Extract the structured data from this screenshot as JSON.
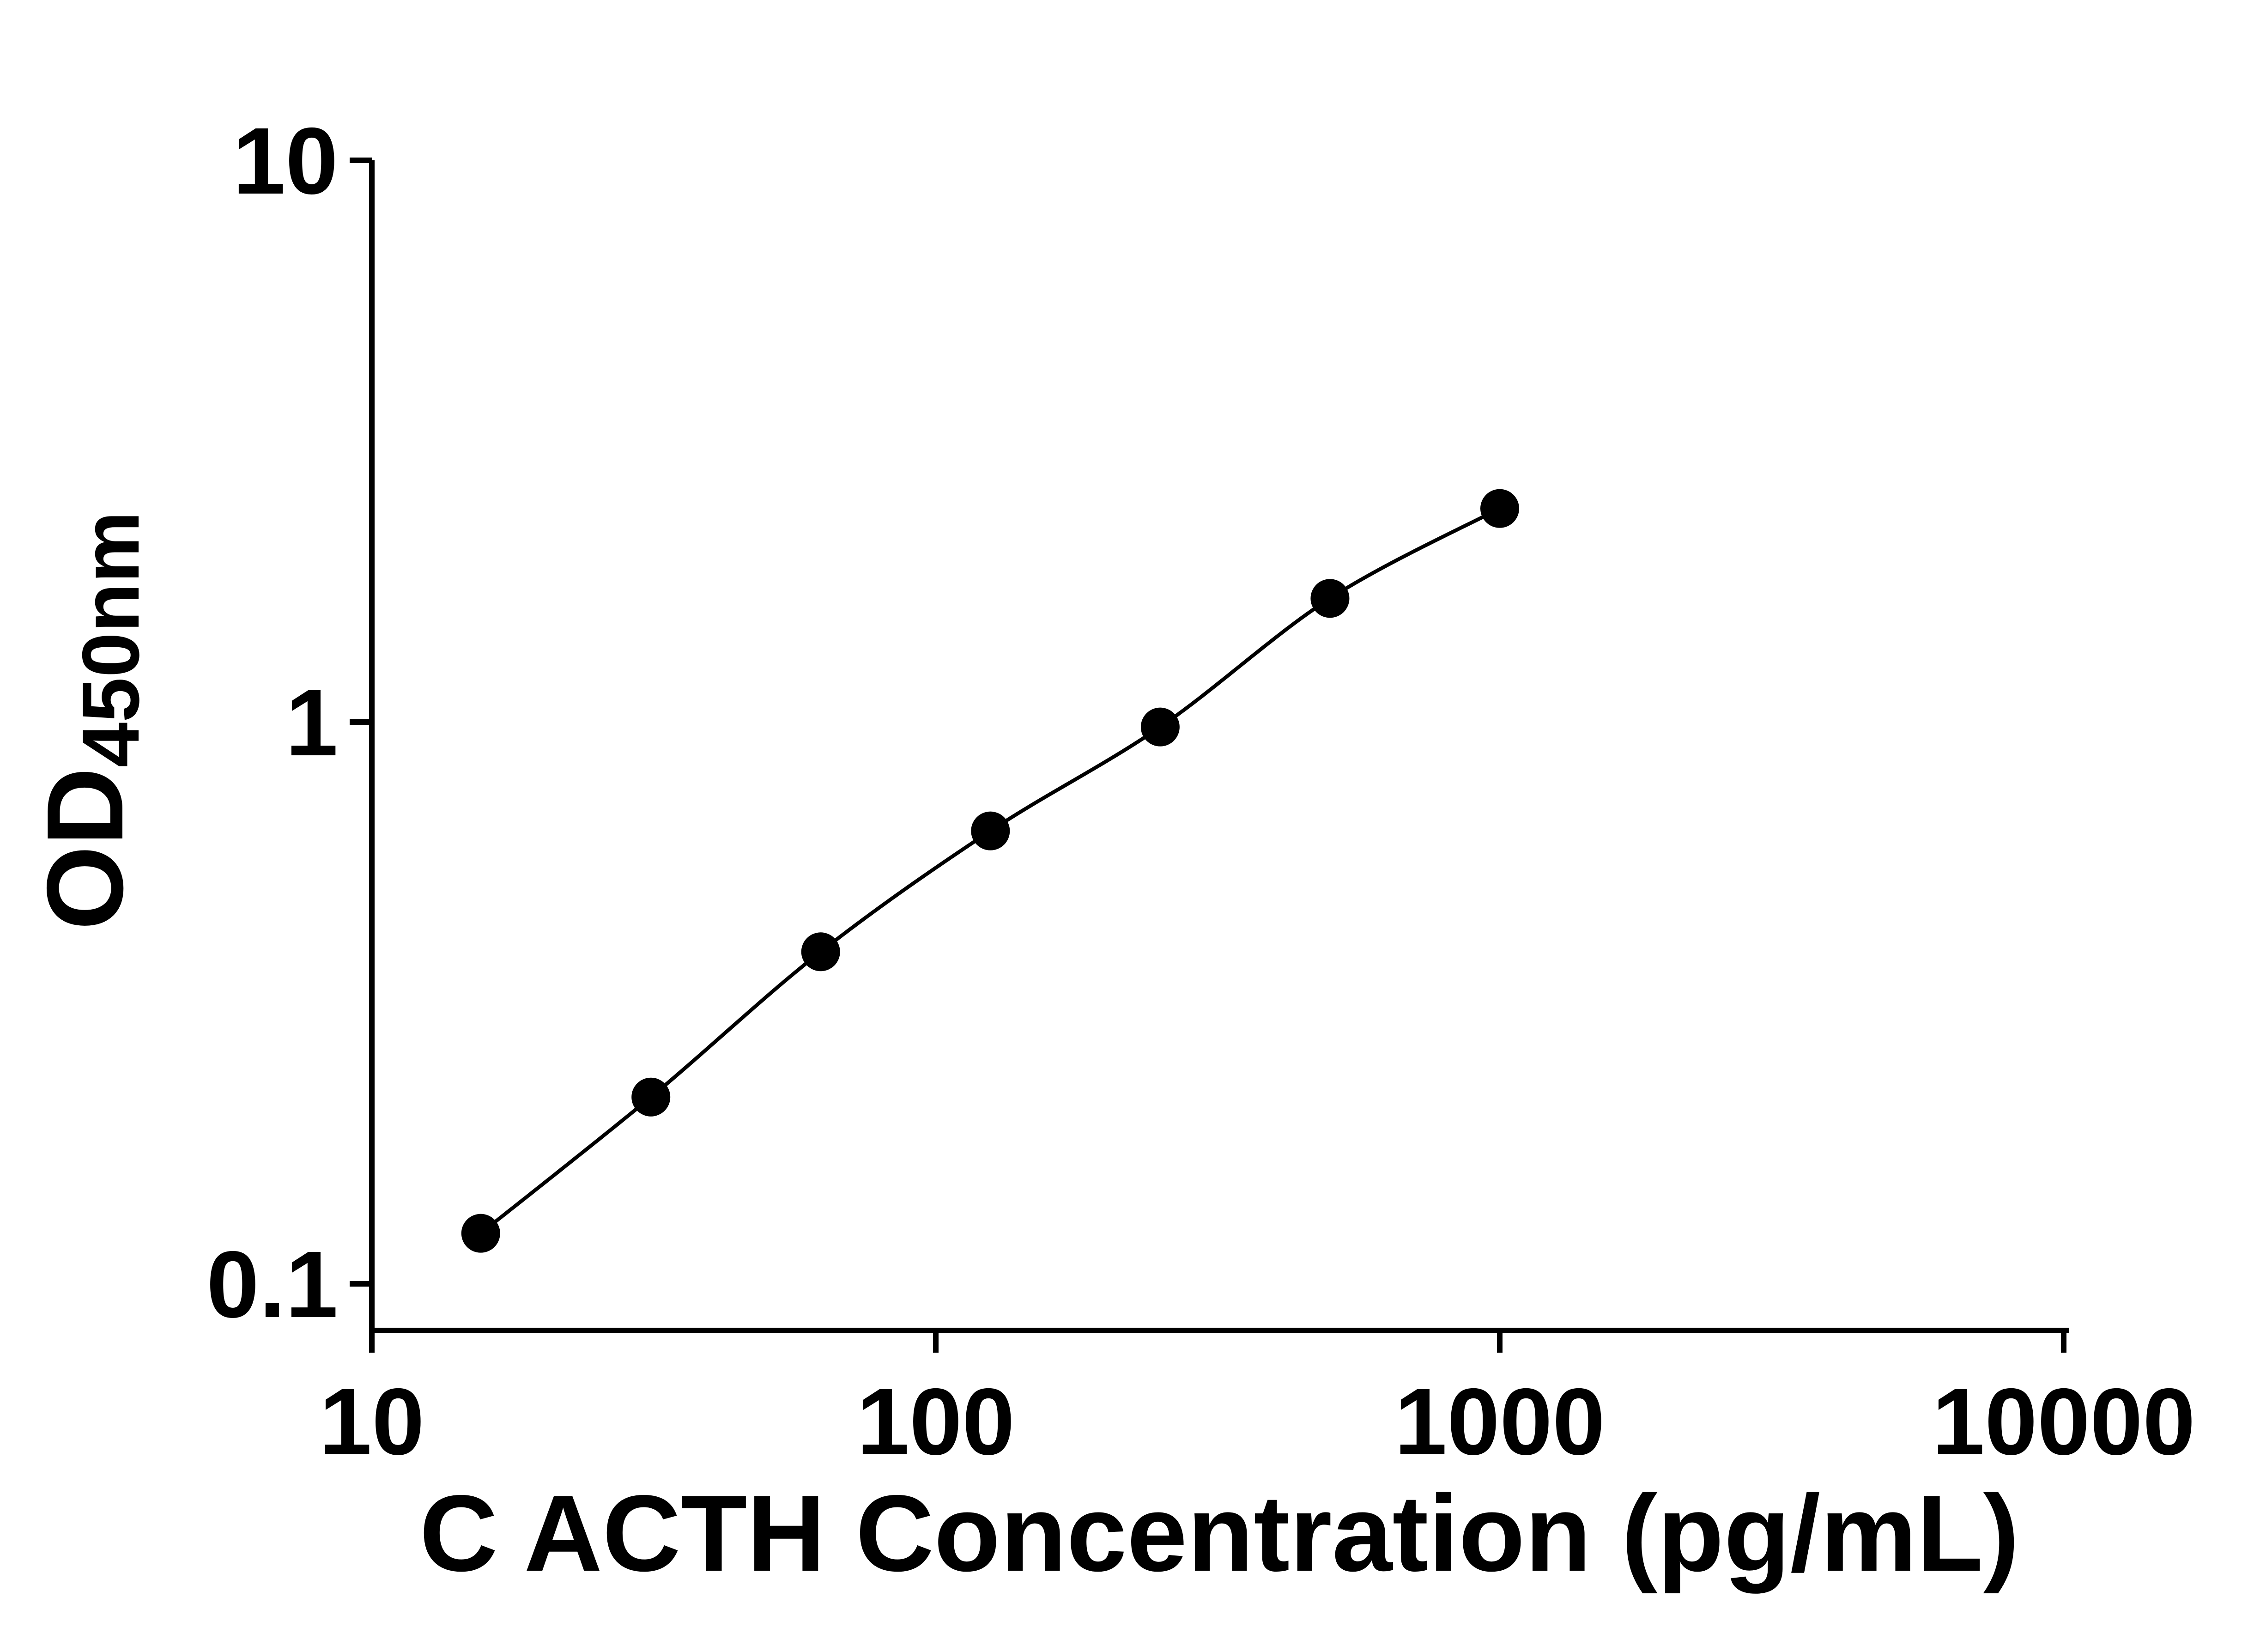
{
  "chart_data": {
    "type": "scatter",
    "title": "",
    "xlabel": "C ACTH Concentration (pg/mL)",
    "ylabel_main": "OD",
    "ylabel_sub": "450nm",
    "x_scale": "log",
    "y_scale": "log",
    "xlim": [
      10,
      10000
    ],
    "ylim": [
      0.1,
      10
    ],
    "grid": false,
    "legend": "none",
    "x": [
      15.6,
      31.25,
      62.5,
      125,
      250,
      500,
      1000
    ],
    "y": [
      0.123,
      0.215,
      0.39,
      0.64,
      0.98,
      1.66,
      2.4
    ],
    "x_ticks": [
      10,
      100,
      1000,
      10000
    ],
    "x_tick_labels": [
      "10",
      "100",
      "1000",
      "10000"
    ],
    "y_ticks": [
      0.1,
      1,
      10
    ],
    "y_tick_labels": [
      "0.1",
      "1",
      "10"
    ],
    "marker_color": "#000000",
    "line_color": "#000000",
    "background_color": "#ffffff"
  }
}
